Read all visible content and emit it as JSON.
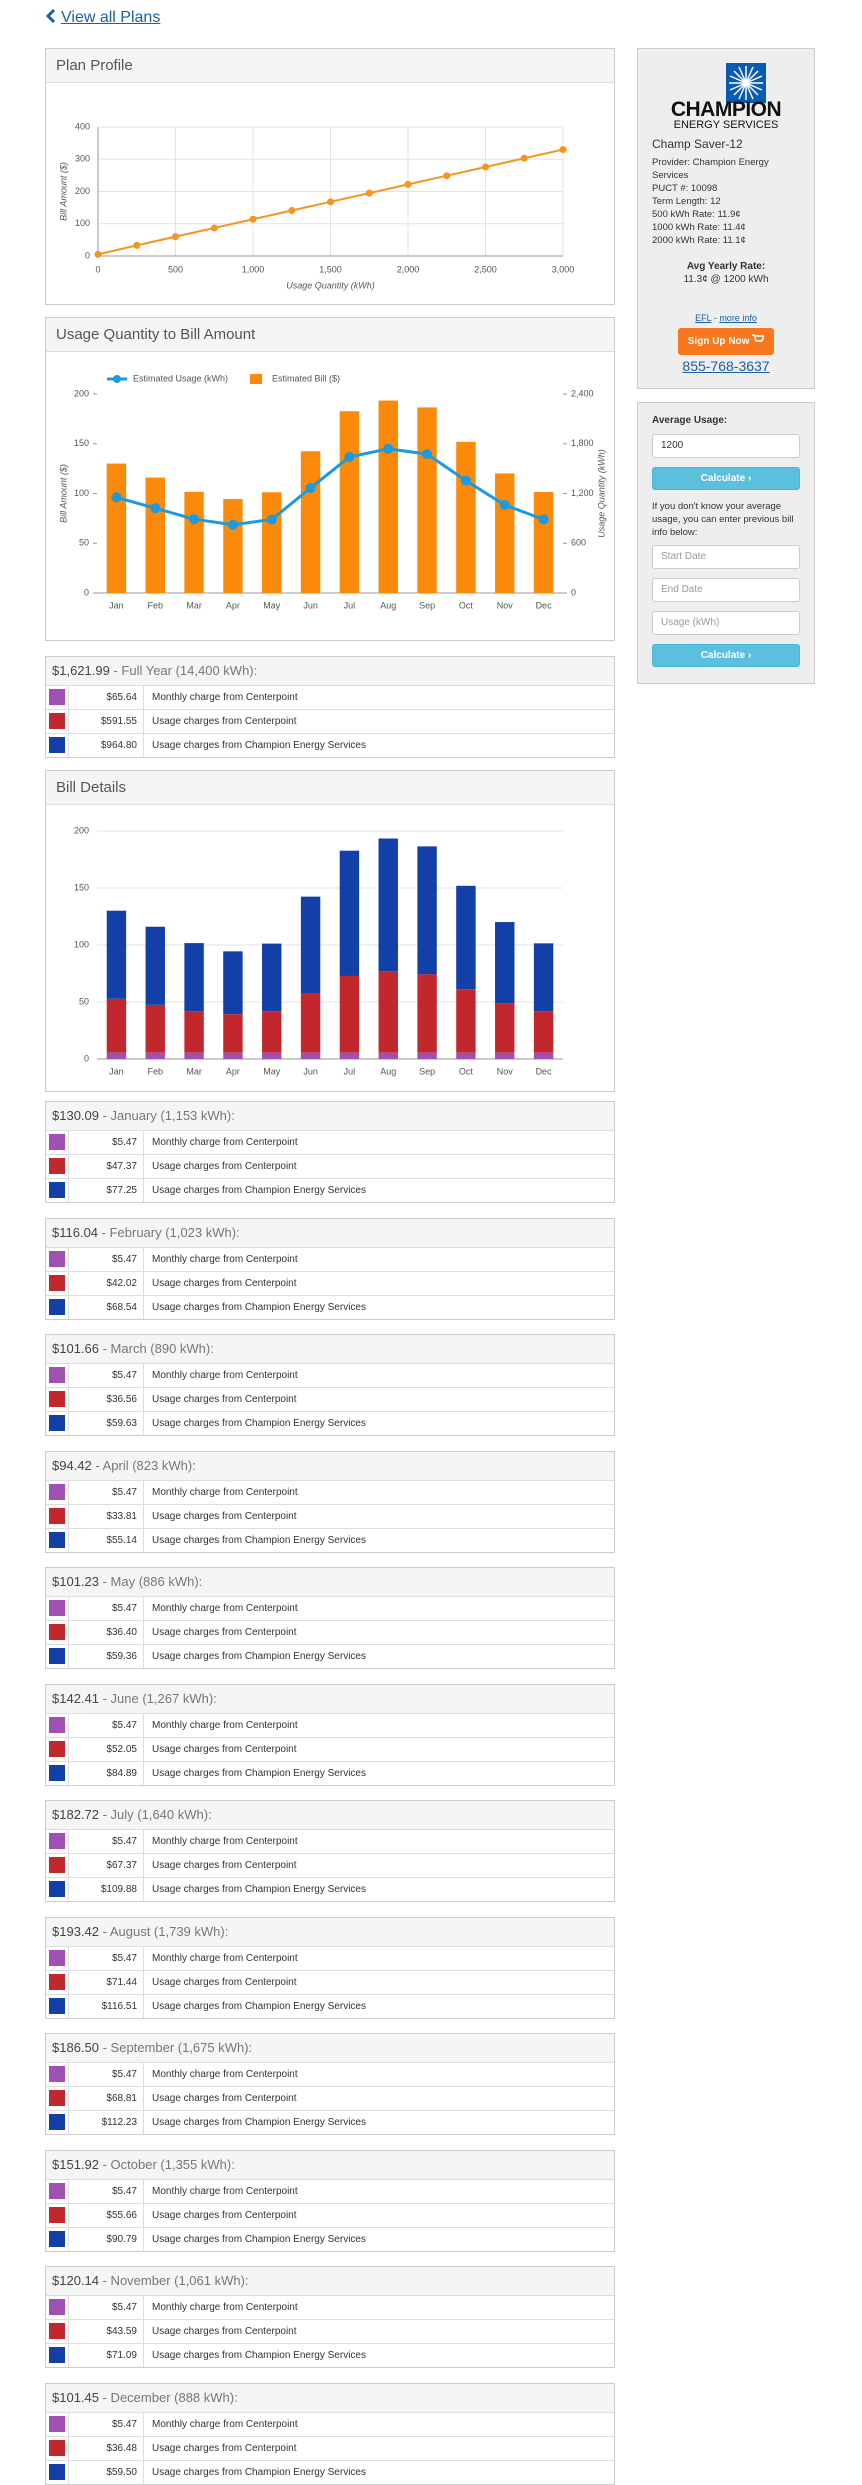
{
  "nav": {
    "back": "View all Plans"
  },
  "chart_data": [
    {
      "type": "line",
      "title": "Plan Profile",
      "xlabel": "Usage Quantity (kWh)",
      "ylabel": "Bill Amount ($)",
      "x": [
        0,
        250,
        500,
        750,
        1000,
        1250,
        1500,
        1750,
        2000,
        2250,
        2500,
        2750,
        3000
      ],
      "values": [
        5,
        33,
        60,
        87,
        114,
        141,
        168,
        195,
        222,
        249,
        276,
        303,
        330
      ],
      "color": "#f7941d",
      "xlim": [
        0,
        3000
      ],
      "ylim": [
        0,
        400
      ],
      "xticks": [
        0,
        500,
        {
          "value": 1000,
          "label": "1,000"
        },
        {
          "value": 1500,
          "label": "1,500"
        },
        {
          "value": 2000,
          "label": "2,000"
        },
        {
          "value": 2500,
          "label": "2,500"
        },
        {
          "value": 3000,
          "label": "3,000"
        }
      ],
      "yticks": [
        0,
        100,
        200,
        300,
        400
      ],
      "grid": true
    },
    {
      "type": "combo",
      "title": "Usage Quantity to Bill Amount",
      "ylabel": "Bill Amount ($)",
      "y2label": "Usage Quantity (kWh)",
      "categories": [
        "Jan",
        "Feb",
        "Mar",
        "Apr",
        "May",
        "Jun",
        "Jul",
        "Aug",
        "Sep",
        "Oct",
        "Nov",
        "Dec"
      ],
      "series": [
        {
          "name": "Estimated Usage (kWh)",
          "type": "line",
          "axis": "y2",
          "color": "#1a9be0",
          "values": [
            1153,
            1023,
            890,
            823,
            886,
            1267,
            1640,
            1739,
            1675,
            1355,
            1061,
            888
          ]
        },
        {
          "name": "Estimated Bill ($)",
          "type": "bar",
          "color": "#fb8a0b",
          "values": [
            130.09,
            116.04,
            101.66,
            94.42,
            101.23,
            142.41,
            182.72,
            193.42,
            186.5,
            151.92,
            120.14,
            101.45
          ]
        }
      ],
      "ylim": [
        0,
        200
      ],
      "yticks": [
        0,
        50,
        100,
        150,
        200
      ],
      "y2lim": [
        0,
        2400
      ],
      "y2ticks": [
        0,
        600,
        {
          "value": 1200,
          "label": "1,200"
        },
        {
          "value": 1800,
          "label": "1,800"
        },
        {
          "value": 2400,
          "label": "2,400"
        }
      ],
      "grid": false
    },
    {
      "type": "stackedbar",
      "title": "Bill Details",
      "categories": [
        "Jan",
        "Feb",
        "Mar",
        "Apr",
        "May",
        "Jun",
        "Jul",
        "Aug",
        "Sep",
        "Oct",
        "Nov",
        "Dec"
      ],
      "series": [
        {
          "color": "#a04fb3",
          "values": [
            5.47,
            5.47,
            5.47,
            5.47,
            5.47,
            5.47,
            5.47,
            5.47,
            5.47,
            5.47,
            5.47,
            5.47
          ]
        },
        {
          "color": "#c1272d",
          "values": [
            47.37,
            42.02,
            36.56,
            33.81,
            36.4,
            52.05,
            67.37,
            71.44,
            68.81,
            55.66,
            43.59,
            36.48
          ]
        },
        {
          "color": "#133fa8",
          "values": [
            77.25,
            68.54,
            59.63,
            55.14,
            59.36,
            84.89,
            109.88,
            116.51,
            112.23,
            90.79,
            71.09,
            59.5
          ]
        }
      ],
      "ylim": [
        0,
        200
      ],
      "yticks": [
        0,
        50,
        100,
        150,
        200
      ],
      "grid": true
    }
  ],
  "bills": [
    {
      "total": "$1,621.99",
      "label": " - Full Year (14,400 kWh):",
      "rows": [
        {
          "amount": "$65.64",
          "desc": "Monthly charge from Centerpoint"
        },
        {
          "amount": "$591.55",
          "desc": "Usage charges from Centerpoint"
        },
        {
          "amount": "$964.80",
          "desc": "Usage charges from Champion Energy Services"
        }
      ]
    },
    {
      "total": "$130.09",
      "label": " - January (1,153 kWh):",
      "rows": [
        {
          "amount": "$5.47",
          "desc": "Monthly charge from Centerpoint"
        },
        {
          "amount": "$47.37",
          "desc": "Usage charges from Centerpoint"
        },
        {
          "amount": "$77.25",
          "desc": "Usage charges from Champion Energy Services"
        }
      ]
    },
    {
      "total": "$116.04",
      "label": " - February (1,023 kWh):",
      "rows": [
        {
          "amount": "$5.47",
          "desc": "Monthly charge from Centerpoint"
        },
        {
          "amount": "$42.02",
          "desc": "Usage charges from Centerpoint"
        },
        {
          "amount": "$68.54",
          "desc": "Usage charges from Champion Energy Services"
        }
      ]
    },
    {
      "total": "$101.66",
      "label": " - March (890 kWh):",
      "rows": [
        {
          "amount": "$5.47",
          "desc": "Monthly charge from Centerpoint"
        },
        {
          "amount": "$36.56",
          "desc": "Usage charges from Centerpoint"
        },
        {
          "amount": "$59.63",
          "desc": "Usage charges from Champion Energy Services"
        }
      ]
    },
    {
      "total": "$94.42",
      "label": " - April (823 kWh):",
      "rows": [
        {
          "amount": "$5.47",
          "desc": "Monthly charge from Centerpoint"
        },
        {
          "amount": "$33.81",
          "desc": "Usage charges from Centerpoint"
        },
        {
          "amount": "$55.14",
          "desc": "Usage charges from Champion Energy Services"
        }
      ]
    },
    {
      "total": "$101.23",
      "label": " - May (886 kWh):",
      "rows": [
        {
          "amount": "$5.47",
          "desc": "Monthly charge from Centerpoint"
        },
        {
          "amount": "$36.40",
          "desc": "Usage charges from Centerpoint"
        },
        {
          "amount": "$59.36",
          "desc": "Usage charges from Champion Energy Services"
        }
      ]
    },
    {
      "total": "$142.41",
      "label": " - June (1,267 kWh):",
      "rows": [
        {
          "amount": "$5.47",
          "desc": "Monthly charge from Centerpoint"
        },
        {
          "amount": "$52.05",
          "desc": "Usage charges from Centerpoint"
        },
        {
          "amount": "$84.89",
          "desc": "Usage charges from Champion Energy Services"
        }
      ]
    },
    {
      "total": "$182.72",
      "label": " - July (1,640 kWh):",
      "rows": [
        {
          "amount": "$5.47",
          "desc": "Monthly charge from Centerpoint"
        },
        {
          "amount": "$67.37",
          "desc": "Usage charges from Centerpoint"
        },
        {
          "amount": "$109.88",
          "desc": "Usage charges from Champion Energy Services"
        }
      ]
    },
    {
      "total": "$193.42",
      "label": " - August (1,739 kWh):",
      "rows": [
        {
          "amount": "$5.47",
          "desc": "Monthly charge from Centerpoint"
        },
        {
          "amount": "$71.44",
          "desc": "Usage charges from Centerpoint"
        },
        {
          "amount": "$116.51",
          "desc": "Usage charges from Champion Energy Services"
        }
      ]
    },
    {
      "total": "$186.50",
      "label": " - September (1,675 kWh):",
      "rows": [
        {
          "amount": "$5.47",
          "desc": "Monthly charge from Centerpoint"
        },
        {
          "amount": "$68.81",
          "desc": "Usage charges from Centerpoint"
        },
        {
          "amount": "$112.23",
          "desc": "Usage charges from Champion Energy Services"
        }
      ]
    },
    {
      "total": "$151.92",
      "label": " - October (1,355 kWh):",
      "rows": [
        {
          "amount": "$5.47",
          "desc": "Monthly charge from Centerpoint"
        },
        {
          "amount": "$55.66",
          "desc": "Usage charges from Centerpoint"
        },
        {
          "amount": "$90.79",
          "desc": "Usage charges from Champion Energy Services"
        }
      ]
    },
    {
      "total": "$120.14",
      "label": " - November (1,061 kWh):",
      "rows": [
        {
          "amount": "$5.47",
          "desc": "Monthly charge from Centerpoint"
        },
        {
          "amount": "$43.59",
          "desc": "Usage charges from Centerpoint"
        },
        {
          "amount": "$71.09",
          "desc": "Usage charges from Champion Energy Services"
        }
      ]
    },
    {
      "total": "$101.45",
      "label": " - December (888 kWh):",
      "rows": [
        {
          "amount": "$5.47",
          "desc": "Monthly charge from Centerpoint"
        },
        {
          "amount": "$36.48",
          "desc": "Usage charges from Centerpoint"
        },
        {
          "amount": "$59.50",
          "desc": "Usage charges from Champion Energy Services"
        }
      ]
    }
  ],
  "plan": {
    "logo_name": "CHAMPION",
    "logo_sub": "ENERGY SERVICES",
    "name": "Champ Saver-12",
    "details": [
      "Provider: Champion Energy Services",
      "PUCT #: 10098",
      "Term Length: 12",
      "500 kWh Rate: 11.9¢",
      "1000 kWh Rate: 11.4¢",
      "2000 kWh Rate: 11.1¢"
    ],
    "avg_label": "Avg Yearly Rate:",
    "avg_value": "11.3¢ @ 1200 kWh",
    "efl": "EFL",
    "more_info": "more info",
    "signup": "Sign Up Now",
    "phone": "855-768-3637"
  },
  "calculator": {
    "label": "Average Usage:",
    "value": "1200",
    "button": "Calculate",
    "help": "If you don't know your average usage, you can enter previous bill info below:",
    "start": "Start Date",
    "end": "End Date",
    "usage": "Usage (kWh)",
    "button2": "Calculate"
  }
}
